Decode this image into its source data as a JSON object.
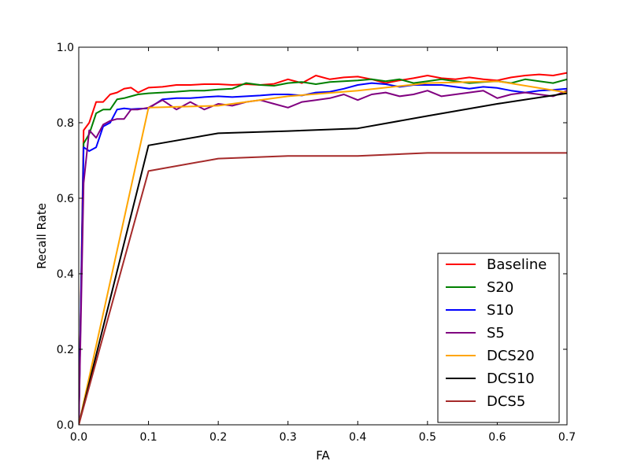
{
  "chart_data": {
    "type": "line",
    "title": "",
    "xlabel": "FA",
    "ylabel": "Recall Rate",
    "xlim": [
      0,
      0.7
    ],
    "ylim": [
      0,
      1.0
    ],
    "x_ticks": [
      "0.0",
      "0.1",
      "0.2",
      "0.3",
      "0.4",
      "0.5",
      "0.6",
      "0.7"
    ],
    "y_ticks": [
      "0.0",
      "0.2",
      "0.4",
      "0.6",
      "0.8",
      "1.0"
    ],
    "grid": false,
    "legend_position": "lower-right",
    "series": [
      {
        "name": "Baseline",
        "color": "#ff0000",
        "x": [
          0,
          0.007,
          0.015,
          0.025,
          0.035,
          0.045,
          0.055,
          0.065,
          0.075,
          0.085,
          0.1,
          0.12,
          0.14,
          0.16,
          0.18,
          0.2,
          0.22,
          0.24,
          0.26,
          0.28,
          0.3,
          0.32,
          0.34,
          0.36,
          0.38,
          0.4,
          0.42,
          0.44,
          0.46,
          0.48,
          0.5,
          0.52,
          0.54,
          0.56,
          0.58,
          0.6,
          0.62,
          0.64,
          0.66,
          0.68,
          0.7
        ],
        "y": [
          0.0,
          0.78,
          0.8,
          0.855,
          0.855,
          0.875,
          0.88,
          0.89,
          0.893,
          0.88,
          0.893,
          0.895,
          0.9,
          0.9,
          0.902,
          0.902,
          0.9,
          0.902,
          0.9,
          0.903,
          0.915,
          0.905,
          0.925,
          0.915,
          0.92,
          0.922,
          0.915,
          0.905,
          0.912,
          0.918,
          0.925,
          0.918,
          0.915,
          0.92,
          0.915,
          0.912,
          0.92,
          0.925,
          0.928,
          0.925,
          0.932
        ]
      },
      {
        "name": "S20",
        "color": "#008000",
        "x": [
          0,
          0.007,
          0.015,
          0.025,
          0.035,
          0.045,
          0.055,
          0.065,
          0.075,
          0.085,
          0.1,
          0.12,
          0.14,
          0.16,
          0.18,
          0.2,
          0.22,
          0.24,
          0.26,
          0.28,
          0.3,
          0.32,
          0.34,
          0.36,
          0.38,
          0.4,
          0.42,
          0.44,
          0.46,
          0.48,
          0.5,
          0.52,
          0.54,
          0.56,
          0.58,
          0.6,
          0.62,
          0.64,
          0.66,
          0.68,
          0.7
        ],
        "y": [
          0.0,
          0.745,
          0.77,
          0.825,
          0.835,
          0.835,
          0.862,
          0.865,
          0.87,
          0.875,
          0.878,
          0.88,
          0.882,
          0.885,
          0.885,
          0.888,
          0.89,
          0.905,
          0.9,
          0.898,
          0.905,
          0.908,
          0.902,
          0.908,
          0.91,
          0.912,
          0.915,
          0.91,
          0.915,
          0.905,
          0.91,
          0.915,
          0.91,
          0.905,
          0.908,
          0.91,
          0.905,
          0.915,
          0.91,
          0.905,
          0.915
        ]
      },
      {
        "name": "S10",
        "color": "#0000ff",
        "x": [
          0,
          0.007,
          0.015,
          0.025,
          0.035,
          0.045,
          0.055,
          0.065,
          0.075,
          0.085,
          0.1,
          0.12,
          0.14,
          0.16,
          0.18,
          0.2,
          0.22,
          0.24,
          0.26,
          0.28,
          0.3,
          0.32,
          0.34,
          0.36,
          0.38,
          0.4,
          0.42,
          0.44,
          0.46,
          0.48,
          0.5,
          0.52,
          0.54,
          0.56,
          0.58,
          0.6,
          0.62,
          0.64,
          0.66,
          0.68,
          0.7
        ],
        "y": [
          0.0,
          0.735,
          0.725,
          0.735,
          0.79,
          0.8,
          0.835,
          0.838,
          0.836,
          0.837,
          0.838,
          0.862,
          0.865,
          0.865,
          0.868,
          0.87,
          0.868,
          0.87,
          0.872,
          0.875,
          0.875,
          0.872,
          0.88,
          0.882,
          0.89,
          0.9,
          0.905,
          0.902,
          0.895,
          0.9,
          0.9,
          0.9,
          0.895,
          0.89,
          0.895,
          0.892,
          0.885,
          0.88,
          0.885,
          0.887,
          0.89
        ]
      },
      {
        "name": "S5",
        "color": "#800080",
        "x": [
          0,
          0.007,
          0.015,
          0.025,
          0.035,
          0.045,
          0.055,
          0.065,
          0.075,
          0.085,
          0.1,
          0.12,
          0.14,
          0.16,
          0.18,
          0.2,
          0.22,
          0.24,
          0.26,
          0.28,
          0.3,
          0.32,
          0.34,
          0.36,
          0.38,
          0.4,
          0.42,
          0.44,
          0.46,
          0.48,
          0.5,
          0.52,
          0.54,
          0.56,
          0.58,
          0.6,
          0.62,
          0.64,
          0.66,
          0.68,
          0.7
        ],
        "y": [
          0.0,
          0.64,
          0.78,
          0.76,
          0.795,
          0.805,
          0.81,
          0.81,
          0.835,
          0.835,
          0.84,
          0.86,
          0.835,
          0.855,
          0.835,
          0.85,
          0.845,
          0.855,
          0.86,
          0.85,
          0.84,
          0.855,
          0.86,
          0.865,
          0.875,
          0.86,
          0.875,
          0.88,
          0.87,
          0.875,
          0.885,
          0.87,
          0.875,
          0.88,
          0.885,
          0.865,
          0.875,
          0.88,
          0.875,
          0.87,
          0.885
        ]
      },
      {
        "name": "DCS20",
        "color": "#ffa500",
        "x": [
          0,
          0.1,
          0.2,
          0.3,
          0.4,
          0.5,
          0.6,
          0.7
        ],
        "y": [
          0.0,
          0.84,
          0.845,
          0.87,
          0.885,
          0.905,
          0.91,
          0.88
        ]
      },
      {
        "name": "DCS10",
        "color": "#000000",
        "x": [
          0,
          0.1,
          0.2,
          0.3,
          0.4,
          0.5,
          0.6,
          0.7
        ],
        "y": [
          0.0,
          0.74,
          0.772,
          0.778,
          0.785,
          0.818,
          0.85,
          0.878
        ]
      },
      {
        "name": "DCS5",
        "color": "#a52a2a",
        "x": [
          0,
          0.1,
          0.2,
          0.3,
          0.4,
          0.5,
          0.6,
          0.7
        ],
        "y": [
          0.0,
          0.672,
          0.705,
          0.712,
          0.712,
          0.72,
          0.72,
          0.72
        ]
      }
    ]
  }
}
